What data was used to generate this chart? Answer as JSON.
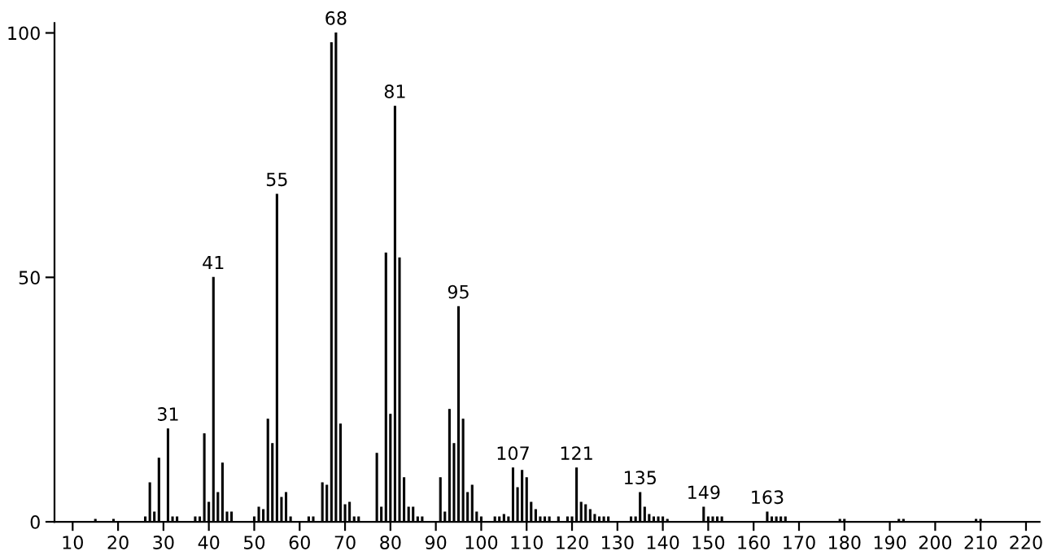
{
  "chart_data": {
    "type": "bar",
    "color": "#000000",
    "x": [
      15,
      19,
      26,
      27,
      28,
      29,
      31,
      32,
      33,
      37,
      38,
      39,
      40,
      41,
      42,
      43,
      44,
      45,
      50,
      51,
      52,
      53,
      54,
      55,
      56,
      57,
      58,
      62,
      63,
      65,
      66,
      67,
      68,
      69,
      70,
      71,
      72,
      73,
      77,
      78,
      79,
      80,
      81,
      82,
      83,
      84,
      85,
      86,
      87,
      91,
      92,
      93,
      94,
      95,
      96,
      97,
      98,
      99,
      100,
      103,
      104,
      105,
      106,
      107,
      108,
      109,
      110,
      111,
      112,
      113,
      114,
      115,
      117,
      119,
      120,
      121,
      122,
      123,
      124,
      125,
      126,
      127,
      128,
      133,
      134,
      135,
      136,
      137,
      138,
      139,
      140,
      141,
      149,
      150,
      151,
      152,
      153,
      163,
      164,
      165,
      166,
      167,
      179,
      180,
      192,
      193,
      209,
      210
    ],
    "values": [
      0.5,
      0.5,
      1,
      8,
      2,
      13,
      19,
      1,
      1,
      1,
      1,
      18,
      4,
      50,
      6,
      12,
      2,
      2,
      1,
      3,
      2.5,
      21,
      16,
      67,
      5,
      6,
      1,
      1,
      1,
      8,
      7.5,
      98,
      100,
      20,
      3.5,
      4,
      1,
      1,
      14,
      3,
      55,
      22,
      85,
      54,
      9,
      3,
      3,
      1,
      1,
      9,
      2,
      23,
      16,
      44,
      21,
      6,
      7.5,
      2,
      1,
      1,
      1,
      1.5,
      1,
      11,
      7,
      10.5,
      9,
      4,
      2.5,
      1,
      1,
      1,
      1,
      1,
      1,
      11,
      4,
      3.5,
      2.5,
      1.5,
      1,
      1,
      1,
      1,
      1,
      6,
      3,
      1.5,
      1,
      1,
      1,
      0.5,
      3,
      1,
      1,
      1,
      1,
      2,
      1,
      1,
      1,
      1,
      0.5,
      0.5,
      0.5,
      0.5,
      0.5,
      0.5
    ],
    "xlim": [
      6,
      223
    ],
    "ylim": [
      0,
      102
    ],
    "xticks": [
      10,
      20,
      30,
      40,
      50,
      60,
      70,
      80,
      90,
      100,
      110,
      120,
      130,
      140,
      150,
      160,
      170,
      180,
      190,
      200,
      210,
      220
    ],
    "yticks": [
      0,
      50,
      100
    ],
    "grid": false,
    "annotations": [
      {
        "text": "31",
        "x": 31,
        "y": 19
      },
      {
        "text": "41",
        "x": 41,
        "y": 50
      },
      {
        "text": "55",
        "x": 55,
        "y": 67
      },
      {
        "text": "68",
        "x": 68,
        "y": 100
      },
      {
        "text": "81",
        "x": 81,
        "y": 85
      },
      {
        "text": "95",
        "x": 95,
        "y": 44
      },
      {
        "text": "107",
        "x": 107,
        "y": 11
      },
      {
        "text": "121",
        "x": 121,
        "y": 11
      },
      {
        "text": "135",
        "x": 135,
        "y": 6
      },
      {
        "text": "149",
        "x": 149,
        "y": 3
      },
      {
        "text": "163",
        "x": 163,
        "y": 2
      }
    ]
  }
}
